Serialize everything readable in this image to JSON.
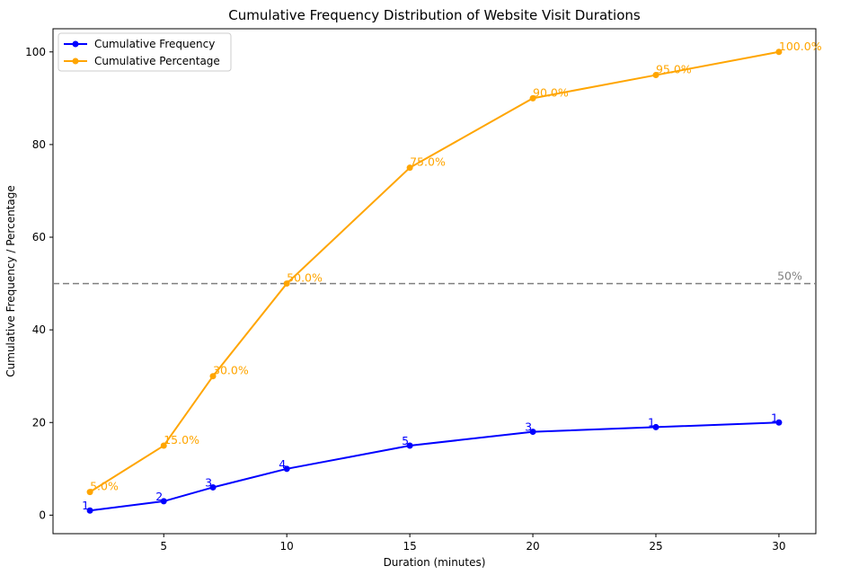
{
  "chart_data": {
    "type": "line",
    "title": "Cumulative Frequency Distribution of Website Visit Durations",
    "xlabel": "Duration (minutes)",
    "ylabel": "Cumulative Frequency / Percentage",
    "xlim": [
      0.5,
      31.5
    ],
    "ylim": [
      -4,
      105
    ],
    "xticks": [
      5,
      10,
      15,
      20,
      25,
      30
    ],
    "yticks": [
      0,
      20,
      40,
      60,
      80,
      100
    ],
    "x": [
      2,
      5,
      7,
      10,
      15,
      20,
      25,
      30
    ],
    "series": [
      {
        "name": "Cumulative Frequency",
        "color": "#0000ff",
        "values": [
          1,
          3,
          6,
          10,
          15,
          18,
          19,
          20
        ],
        "labels": [
          "1",
          "2",
          "3",
          "4",
          "5",
          "3",
          "1",
          "1"
        ]
      },
      {
        "name": "Cumulative Percentage",
        "color": "#ffa500",
        "values": [
          5,
          15,
          30,
          50,
          75,
          90,
          95,
          100
        ],
        "labels": [
          "5.0%",
          "15.0%",
          "30.0%",
          "50.0%",
          "75.0%",
          "90.0%",
          "95.0%",
          "100.0%"
        ]
      }
    ],
    "reference_line": {
      "y": 50,
      "label": "50%",
      "color": "#808080",
      "style": "dashed"
    },
    "legend_position": "top-left",
    "grid": false
  }
}
